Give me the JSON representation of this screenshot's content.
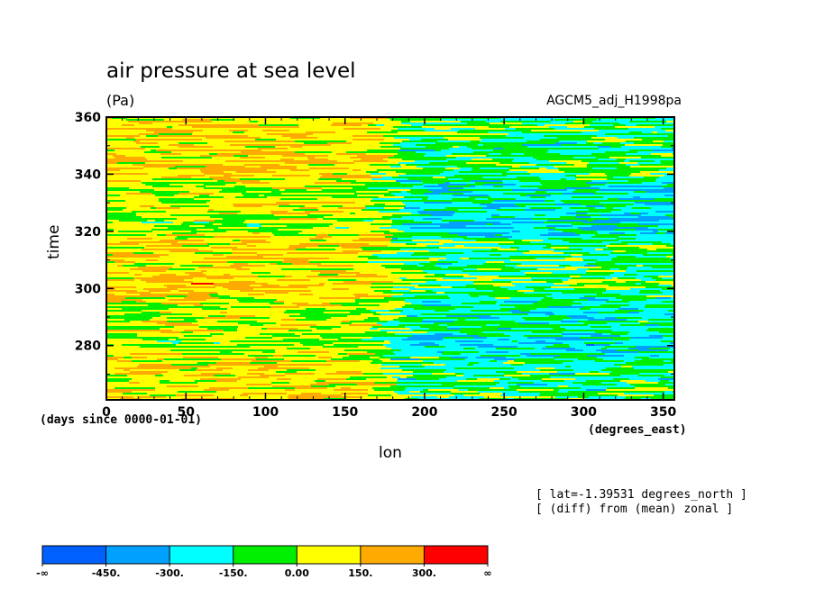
{
  "chart_data": {
    "type": "heatmap",
    "title": "air pressure at sea level",
    "units": "(Pa)",
    "dataset": "AGCM5_adj_H1998pa",
    "xlabel": "lon",
    "ylabel": "time",
    "x_units": "(degrees_east)",
    "y_units": "(days since 0000-01-01)",
    "xlim": [
      0,
      357
    ],
    "ylim": [
      261,
      360
    ],
    "x_ticks": [
      "0",
      "50",
      "100",
      "150",
      "200",
      "250",
      "300",
      "350"
    ],
    "y_ticks": [
      "280",
      "300",
      "320",
      "340",
      "360"
    ],
    "annotations": [
      "[ lat=-1.39531 degrees_north ]",
      "[ (diff) from (mean) zonal ]"
    ],
    "colorbar": {
      "colors": [
        "#0060ff",
        "#00a0ff",
        "#00ffff",
        "#00ee00",
        "#ffff00",
        "#ffaa00",
        "#ff0000"
      ],
      "labels": [
        "-∞",
        "-450.",
        "-300.",
        "-150.",
        "0.00",
        "150.",
        "300.",
        "∞"
      ]
    },
    "description_levels": {
      "west_of_160E": "mostly 0 to 300 Pa (yellow/orange) with bands of -150 to 0",
      "east_of_160E": "mostly -300 to 0 Pa (green/cyan) with yellow bands"
    }
  }
}
